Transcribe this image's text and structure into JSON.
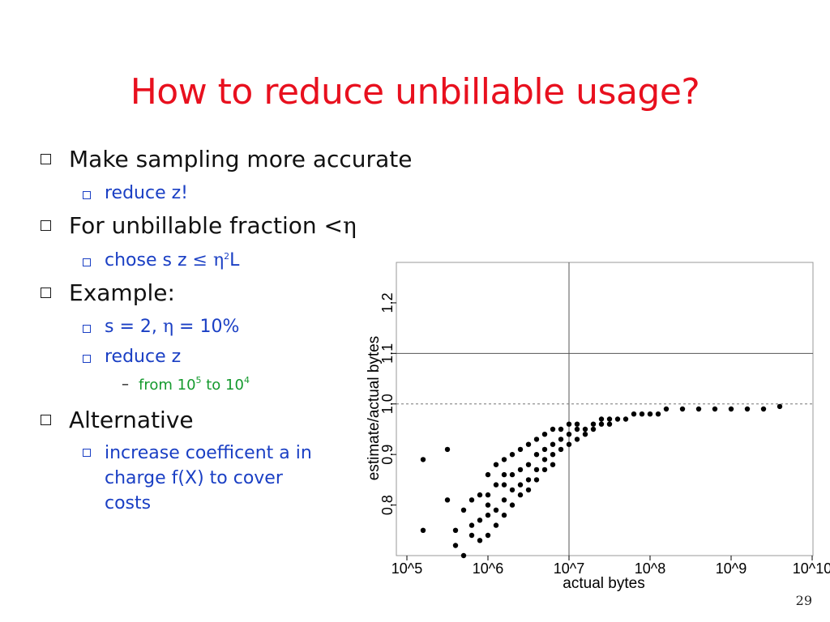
{
  "slide": {
    "title": "How to reduce unbillable usage?",
    "page_number": "29",
    "bullets": {
      "b1": "Make sampling more accurate",
      "b1_sub1": "reduce z!",
      "b2": "For unbillable fraction < ",
      "b2_sym": "η",
      "b2_sub1_pre": "chose s z ",
      "b2_sub1_le": "≤",
      "b2_sub1_eta": "η",
      "b2_sub1_exp": "2",
      "b2_sub1_post": "L",
      "b3": "Example:",
      "b3_sub1_pre": "s = 2, ",
      "b3_sub1_eta": "η",
      "b3_sub1_post": " = 10%",
      "b3_sub2": "reduce z",
      "b3_sub2_sub_pre": "from 10",
      "b3_sub2_sub_exp1": "5",
      "b3_sub2_sub_mid": " to 10",
      "b3_sub2_sub_exp2": "4",
      "b4": "Alternative",
      "b4_sub1": "increase coefficent a in charge f(X) to cover costs"
    },
    "colors": {
      "title": "#e8101e",
      "level2": "#1a3fc4",
      "level3": "#159a2e",
      "text": "#111111"
    }
  },
  "chart_data": {
    "type": "scatter",
    "xlabel": "actual bytes",
    "ylabel": "estimate/actual bytes",
    "x_log10_range": [
      5,
      10
    ],
    "y_range": [
      0.7,
      1.28
    ],
    "x_ticks": [
      {
        "v": 5,
        "label": "10^5"
      },
      {
        "v": 6,
        "label": "10^6"
      },
      {
        "v": 7,
        "label": "10^7"
      },
      {
        "v": 8,
        "label": "10^8"
      },
      {
        "v": 9,
        "label": "10^9"
      },
      {
        "v": 10,
        "label": "10^10"
      }
    ],
    "y_ticks": [
      {
        "v": 0.8,
        "label": "0.8"
      },
      {
        "v": 0.9,
        "label": "0.9"
      },
      {
        "v": 1.0,
        "label": "1.0"
      },
      {
        "v": 1.1,
        "label": "1.1"
      },
      {
        "v": 1.2,
        "label": "1.2"
      }
    ],
    "reference_lines": {
      "vertical_log10x": 7,
      "horizontal_solid_y": 1.1,
      "horizontal_dashed_y": 1.0
    },
    "grid": false,
    "point_color": "#000000",
    "points": [
      [
        5.2,
        0.75
      ],
      [
        5.2,
        0.89
      ],
      [
        5.5,
        0.91
      ],
      [
        5.5,
        0.81
      ],
      [
        5.6,
        0.75
      ],
      [
        5.6,
        0.72
      ],
      [
        5.7,
        0.79
      ],
      [
        5.7,
        0.7
      ],
      [
        5.8,
        0.76
      ],
      [
        5.8,
        0.81
      ],
      [
        5.8,
        0.74
      ],
      [
        5.9,
        0.82
      ],
      [
        5.9,
        0.77
      ],
      [
        5.9,
        0.73
      ],
      [
        6.0,
        0.78
      ],
      [
        6.0,
        0.82
      ],
      [
        6.0,
        0.86
      ],
      [
        6.0,
        0.74
      ],
      [
        6.0,
        0.8
      ],
      [
        6.1,
        0.84
      ],
      [
        6.1,
        0.79
      ],
      [
        6.1,
        0.88
      ],
      [
        6.1,
        0.76
      ],
      [
        6.2,
        0.86
      ],
      [
        6.2,
        0.81
      ],
      [
        6.2,
        0.84
      ],
      [
        6.2,
        0.78
      ],
      [
        6.2,
        0.89
      ],
      [
        6.3,
        0.83
      ],
      [
        6.3,
        0.86
      ],
      [
        6.3,
        0.9
      ],
      [
        6.3,
        0.8
      ],
      [
        6.4,
        0.87
      ],
      [
        6.4,
        0.84
      ],
      [
        6.4,
        0.91
      ],
      [
        6.4,
        0.82
      ],
      [
        6.5,
        0.88
      ],
      [
        6.5,
        0.85
      ],
      [
        6.5,
        0.92
      ],
      [
        6.5,
        0.83
      ],
      [
        6.6,
        0.9
      ],
      [
        6.6,
        0.87
      ],
      [
        6.6,
        0.93
      ],
      [
        6.6,
        0.85
      ],
      [
        6.7,
        0.91
      ],
      [
        6.7,
        0.89
      ],
      [
        6.7,
        0.94
      ],
      [
        6.7,
        0.87
      ],
      [
        6.8,
        0.92
      ],
      [
        6.8,
        0.9
      ],
      [
        6.8,
        0.95
      ],
      [
        6.8,
        0.88
      ],
      [
        6.9,
        0.93
      ],
      [
        6.9,
        0.91
      ],
      [
        6.9,
        0.95
      ],
      [
        7.0,
        0.94
      ],
      [
        7.0,
        0.92
      ],
      [
        7.0,
        0.96
      ],
      [
        7.1,
        0.95
      ],
      [
        7.1,
        0.93
      ],
      [
        7.1,
        0.96
      ],
      [
        7.2,
        0.95
      ],
      [
        7.2,
        0.94
      ],
      [
        7.3,
        0.96
      ],
      [
        7.3,
        0.95
      ],
      [
        7.4,
        0.96
      ],
      [
        7.4,
        0.97
      ],
      [
        7.5,
        0.97
      ],
      [
        7.5,
        0.96
      ],
      [
        7.6,
        0.97
      ],
      [
        7.7,
        0.97
      ],
      [
        7.8,
        0.98
      ],
      [
        7.9,
        0.98
      ],
      [
        8.0,
        0.98
      ],
      [
        8.1,
        0.98
      ],
      [
        8.2,
        0.99
      ],
      [
        8.4,
        0.99
      ],
      [
        8.6,
        0.99
      ],
      [
        8.8,
        0.99
      ],
      [
        9.0,
        0.99
      ],
      [
        9.2,
        0.99
      ],
      [
        9.4,
        0.99
      ],
      [
        9.6,
        0.995
      ]
    ]
  }
}
